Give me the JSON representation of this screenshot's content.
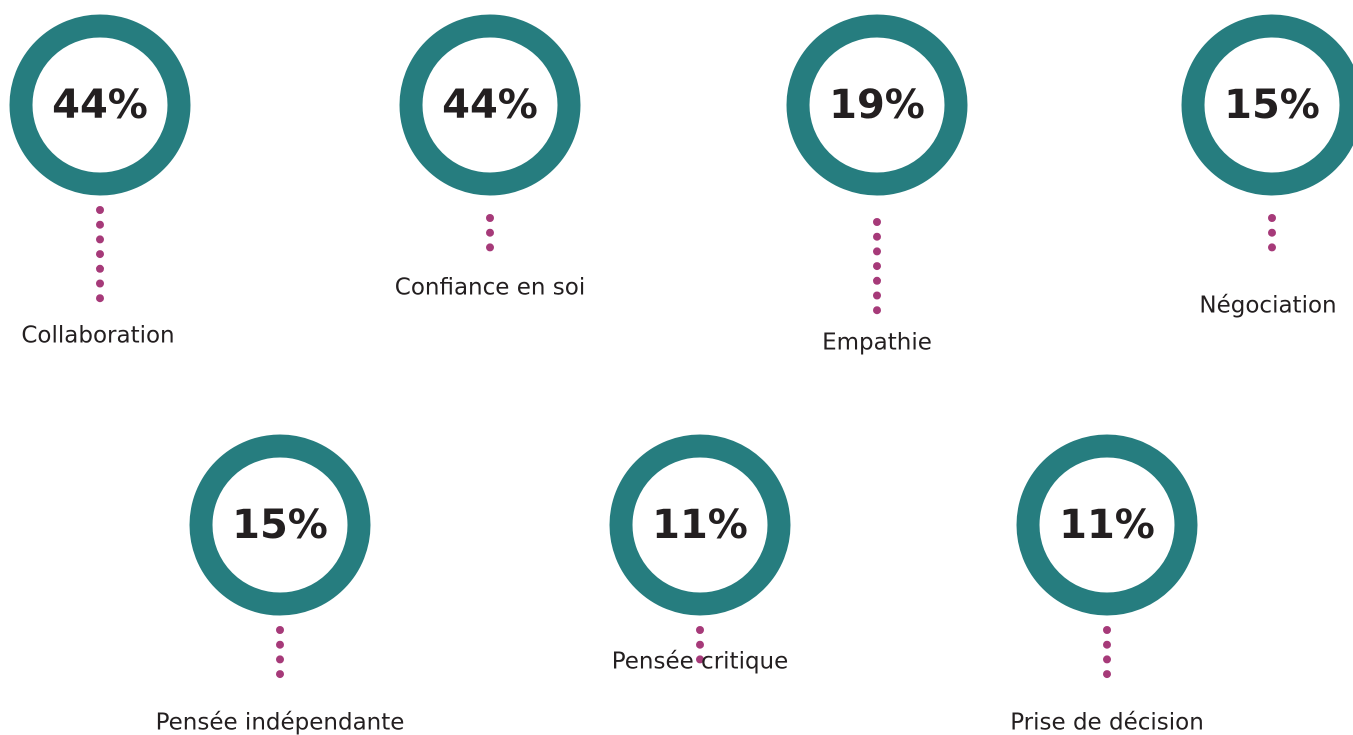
{
  "items": [
    {
      "value": "44%",
      "label": "Collaboration"
    },
    {
      "value": "44%",
      "label": "Confiance en soi"
    },
    {
      "value": "19%",
      "label": "Empathie"
    },
    {
      "value": "15%",
      "label": "Négociation"
    },
    {
      "value": "15%",
      "label": "Pensée indépendante"
    },
    {
      "value": "11%",
      "label": "Pensée critique"
    },
    {
      "value": "11%",
      "label": "Prise de décision"
    }
  ]
}
